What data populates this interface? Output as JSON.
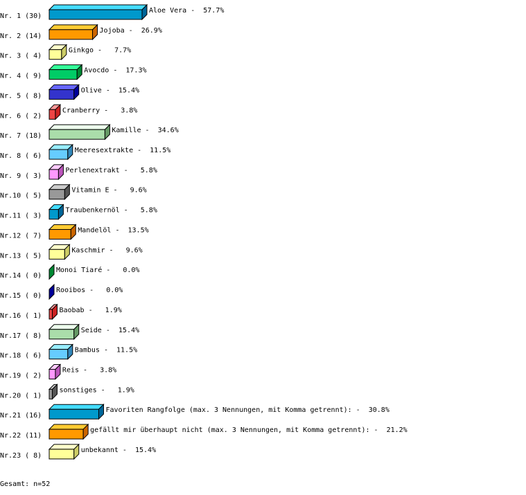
{
  "chart_data": {
    "type": "bar",
    "orientation": "horizontal",
    "style": "3d",
    "grid": false,
    "categories": [
      "Aloe Vera",
      "Jojoba",
      "Ginkgo",
      "Avocdo",
      "Olive",
      "Cranberry",
      "Kamille",
      "Meeresextrakte",
      "Perlenextrakt",
      "Vitamin E",
      "Traubenkernöl",
      "Mandelöl",
      "Kaschmir",
      "Monoi Tiaré",
      "Rooibos",
      "Baobab",
      "Seide",
      "Bambus",
      "Reis",
      "sonstiges",
      "Favoriten Rangfolge (max. 3 Nennungen, mit Komma getrennt):",
      "gefällt mir überhaupt nicht (max. 3 Nennungen, mit Komma getrennt):",
      "unbekannt"
    ],
    "row_labels": [
      "Nr. 1 (30)",
      "Nr. 2 (14)",
      "Nr. 3 ( 4)",
      "Nr. 4 ( 9)",
      "Nr. 5 ( 8)",
      "Nr. 6 ( 2)",
      "Nr. 7 (18)",
      "Nr. 8 ( 6)",
      "Nr. 9 ( 3)",
      "Nr.10 ( 5)",
      "Nr.11 ( 3)",
      "Nr.12 ( 7)",
      "Nr.13 ( 5)",
      "Nr.14 ( 0)",
      "Nr.15 ( 0)",
      "Nr.16 ( 1)",
      "Nr.17 ( 8)",
      "Nr.18 ( 6)",
      "Nr.19 ( 2)",
      "Nr.20 ( 1)",
      "Nr.21 (16)",
      "Nr.22 (11)",
      "Nr.23 ( 8)"
    ],
    "values": [
      30,
      14,
      4,
      9,
      8,
      2,
      18,
      6,
      3,
      5,
      3,
      7,
      5,
      0,
      0,
      1,
      8,
      6,
      2,
      1,
      16,
      11,
      8
    ],
    "percent_labels": [
      "57.7%",
      "26.9%",
      "7.7%",
      "17.3%",
      "15.4%",
      "3.8%",
      "34.6%",
      "11.5%",
      "5.8%",
      "9.6%",
      "5.8%",
      "13.5%",
      "9.6%",
      "0.0%",
      "0.0%",
      "1.9%",
      "15.4%",
      "11.5%",
      "3.8%",
      "1.9%",
      "30.8%",
      "21.2%",
      "15.4%"
    ],
    "palette": [
      {
        "front": "#0099cc",
        "top": "#44ddff",
        "side": "#006699"
      },
      {
        "front": "#ff9900",
        "top": "#ffcc33",
        "side": "#cc6600"
      },
      {
        "front": "#ffff99",
        "top": "#ffffcc",
        "side": "#cccc66"
      },
      {
        "front": "#00cc66",
        "top": "#33ff99",
        "side": "#008833"
      },
      {
        "front": "#3333cc",
        "top": "#6666ff",
        "side": "#000099"
      },
      {
        "front": "#ee4444",
        "top": "#ff9999",
        "side": "#cc2222"
      },
      {
        "front": "#aaddaa",
        "top": "#eeffee",
        "side": "#669966"
      },
      {
        "front": "#66ccff",
        "top": "#99eeff",
        "side": "#3388bb"
      },
      {
        "front": "#ff99ff",
        "top": "#ffccff",
        "side": "#bb55bb"
      },
      {
        "front": "#999999",
        "top": "#cccccc",
        "side": "#555555"
      }
    ],
    "footer": "Gesamt: n=52"
  }
}
